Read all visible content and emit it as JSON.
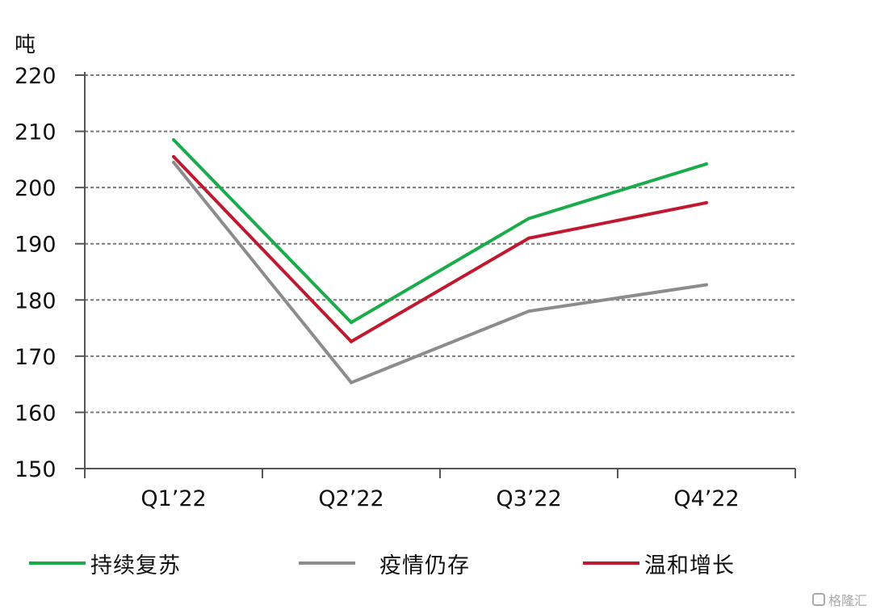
{
  "chart_data": {
    "type": "line",
    "ylabel": "吨",
    "categories": [
      "Q1’22",
      "Q2’22",
      "Q3’22",
      "Q4’22"
    ],
    "ylim": [
      150,
      220
    ],
    "yticks": [
      150,
      160,
      170,
      180,
      190,
      200,
      210,
      220
    ],
    "grid": true,
    "legend_position": "bottom",
    "series": [
      {
        "name": "持续复苏",
        "color": "#1aab4b",
        "values": [
          208.5,
          176.0,
          194.5,
          204.2
        ]
      },
      {
        "name": "疫情仍存",
        "color": "#8c8c8c",
        "values": [
          204.5,
          165.3,
          178.0,
          182.7
        ]
      },
      {
        "name": "温和增长",
        "color": "#c0192f",
        "values": [
          205.5,
          172.6,
          191.0,
          197.3
        ]
      }
    ]
  },
  "watermark": {
    "text": "格隆汇"
  }
}
